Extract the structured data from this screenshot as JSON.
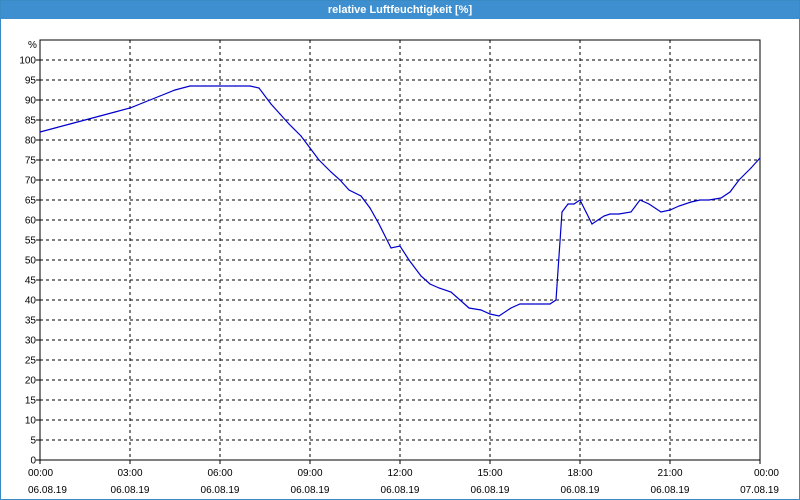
{
  "window": {
    "title": "relative Luftfeuchtigkeit [%]"
  },
  "chart_data": {
    "type": "line",
    "title": "relative Luftfeuchtigkeit [%]",
    "ylabel": "%",
    "xlabel": "",
    "ylim": [
      0,
      105
    ],
    "yticks": [
      0,
      5,
      10,
      15,
      20,
      25,
      30,
      35,
      40,
      45,
      50,
      55,
      60,
      65,
      70,
      75,
      80,
      85,
      90,
      95,
      100
    ],
    "xlim_hours": [
      0,
      24
    ],
    "xticks": [
      {
        "hour": 0,
        "time": "00:00",
        "date": "06.08.19"
      },
      {
        "hour": 3,
        "time": "03:00",
        "date": "06.08.19"
      },
      {
        "hour": 6,
        "time": "06:00",
        "date": "06.08.19"
      },
      {
        "hour": 9,
        "time": "09:00",
        "date": "06.08.19"
      },
      {
        "hour": 12,
        "time": "12:00",
        "date": "06.08.19"
      },
      {
        "hour": 15,
        "time": "15:00",
        "date": "06.08.19"
      },
      {
        "hour": 18,
        "time": "18:00",
        "date": "06.08.19"
      },
      {
        "hour": 21,
        "time": "21:00",
        "date": "06.08.19"
      },
      {
        "hour": 24,
        "time": "00:00",
        "date": "07.08.19"
      }
    ],
    "grid": true,
    "line_color": "#0000cc",
    "series": [
      {
        "x_hours": [
          0,
          0.5,
          1,
          1.5,
          2,
          2.5,
          3,
          3.5,
          4,
          4.5,
          5,
          5.5,
          6,
          6.5,
          7,
          7.3,
          7.7,
          8,
          8.3,
          8.7,
          9,
          9.3,
          9.7,
          10,
          10.3,
          10.7,
          11,
          11.3,
          11.7,
          12,
          12.3,
          12.7,
          13,
          13.3,
          13.7,
          14,
          14.3,
          14.7,
          15,
          15.3,
          15.7,
          16,
          16.3,
          16.7,
          17,
          17.2,
          17.4,
          17.6,
          17.8,
          18,
          18.2,
          18.4,
          18.6,
          18.8,
          19,
          19.3,
          19.7,
          20,
          20.3,
          20.7,
          21,
          21.3,
          21.7,
          22,
          22.3,
          22.7,
          23,
          23.3,
          23.7,
          24
        ],
        "values": [
          82,
          83,
          84,
          85,
          86,
          87,
          88,
          89.5,
          91,
          92.5,
          93.5,
          93.5,
          93.5,
          93.5,
          93.5,
          93,
          89,
          86.5,
          84,
          81,
          78,
          75,
          72,
          70,
          67.5,
          66,
          63,
          59,
          53,
          53.5,
          50,
          46,
          44,
          43,
          42,
          40,
          38,
          37.5,
          36.5,
          36,
          38,
          39,
          39,
          39,
          39,
          40,
          62,
          64,
          64,
          65,
          62,
          59,
          60,
          61,
          61.5,
          61.5,
          62,
          65,
          64,
          62,
          62.5,
          63.5,
          64.5,
          65,
          65,
          65.5,
          67,
          70,
          73,
          75.5
        ]
      }
    ]
  }
}
